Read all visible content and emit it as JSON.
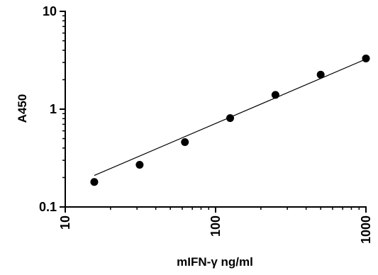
{
  "chart_data": {
    "type": "scatter",
    "title": "",
    "xlabel": "mIFN-γ ng/ml",
    "ylabel": "A450",
    "x_scale": "log",
    "y_scale": "log",
    "xlim": [
      10,
      1000
    ],
    "ylim": [
      0.1,
      10
    ],
    "x_ticks": [
      10,
      100,
      1000
    ],
    "x_tick_labels": [
      "10",
      "100",
      "1000"
    ],
    "y_ticks": [
      0.1,
      1,
      10
    ],
    "y_tick_labels": [
      "0.1",
      "1",
      "10"
    ],
    "grid": false,
    "legend": "none",
    "colors": {
      "points": "#000000",
      "fit_line": "#000000",
      "axes": "#000000"
    },
    "series": [
      {
        "x": [
          15.6,
          31.25,
          62.5,
          125,
          250,
          500,
          1000
        ],
        "y": [
          0.18,
          0.27,
          0.46,
          0.81,
          1.4,
          2.25,
          3.3
        ]
      }
    ],
    "fit_line": {
      "x": [
        15.6,
        1000
      ],
      "y": [
        0.21,
        3.25
      ]
    }
  }
}
